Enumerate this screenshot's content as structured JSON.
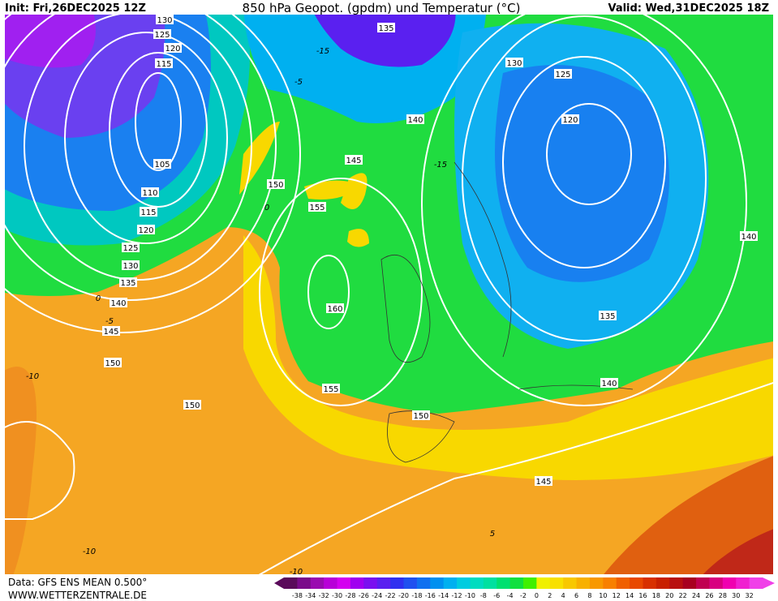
{
  "header": {
    "init": "Init: Fri,26DEC2025 12Z",
    "title": "850 hPa Geopot. (gpdm) und Temperatur (°C)",
    "valid": "Valid: Wed,31DEC2025 18Z"
  },
  "contour_labels": [
    "130",
    "125",
    "120",
    "115",
    "105",
    "110",
    "115",
    "120",
    "125",
    "130",
    "135",
    "140",
    "145",
    "150",
    "150",
    "155",
    "150",
    "145",
    "160",
    "155",
    "150",
    "145",
    "140",
    "135",
    "140",
    "135",
    "130",
    "125",
    "120",
    "140"
  ],
  "temperature_labels": [
    "-15",
    "-5",
    "-15",
    "-10",
    "-10",
    "5",
    "0",
    "-5",
    "0",
    "-10"
  ],
  "footer": {
    "data": "Data: GFS ENS MEAN 0.500°",
    "site": "WWW.WETTERZENTRALE.DE"
  },
  "colorbar": {
    "labels": [
      "-38",
      "-34",
      "-32",
      "-30",
      "-28",
      "-26",
      "-24",
      "-22",
      "-20",
      "-18",
      "-16",
      "-14",
      "-12",
      "-10",
      "-8",
      "-6",
      "-4",
      "-2",
      "0",
      "2",
      "4",
      "6",
      "8",
      "10",
      "12",
      "14",
      "16",
      "18",
      "20",
      "22",
      "24",
      "26",
      "28",
      "30",
      "32"
    ],
    "colors": [
      "#5a0a5a",
      "#7a0a8a",
      "#9a0ab0",
      "#b800d8",
      "#d400f0",
      "#a000f0",
      "#7a10f0",
      "#5a20f0",
      "#3030f0",
      "#2050f0",
      "#1070f0",
      "#0090f0",
      "#00b0f0",
      "#00cce0",
      "#00dcc0",
      "#00e0a0",
      "#00e070",
      "#10e040",
      "#40f000",
      "#f0f000",
      "#f8e000",
      "#f8c800",
      "#f8b000",
      "#f89800",
      "#f88000",
      "#f06000",
      "#e84800",
      "#d83000",
      "#c82000",
      "#b81010",
      "#a80020",
      "#c00050",
      "#d80080",
      "#f000b0",
      "#f020d0",
      "#f040e8"
    ]
  }
}
